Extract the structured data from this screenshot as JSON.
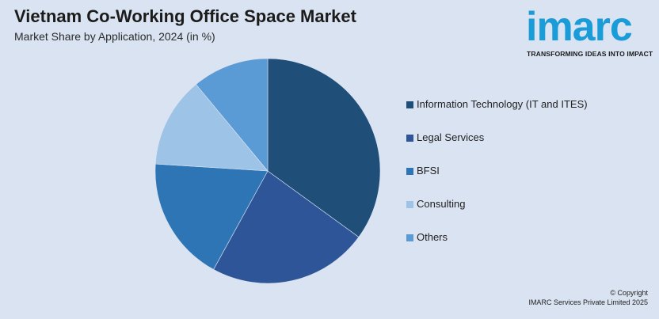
{
  "header": {
    "title": "Vietnam Co-Working Office Space Market",
    "subtitle": "Market Share by Application, 2024 (in %)"
  },
  "logo": {
    "wordmark": "imarc",
    "tagline": "TRANSFORMING IDEAS INTO IMPACT",
    "color": "#1a9cd8"
  },
  "chart_data": {
    "type": "pie",
    "title": "Vietnam Co-Working Office Space Market",
    "subtitle": "Market Share by Application, 2024 (in %)",
    "legend_position": "right",
    "start_angle_deg": 0,
    "direction": "clockwise",
    "slices": [
      {
        "label": "Information Technology (IT and ITES)",
        "value": 35,
        "color": "#1f4e79"
      },
      {
        "label": "Legal Services",
        "value": 23,
        "color": "#2e5597"
      },
      {
        "label": "BFSI",
        "value": 18,
        "color": "#2e75b6"
      },
      {
        "label": "Consulting",
        "value": 13,
        "color": "#9dc3e6"
      },
      {
        "label": "Others",
        "value": 11,
        "color": "#5b9bd5"
      }
    ]
  },
  "footer": {
    "copyright_line1": "© Copyright",
    "copyright_line2": "IMARC Services Private Limited 2025"
  }
}
